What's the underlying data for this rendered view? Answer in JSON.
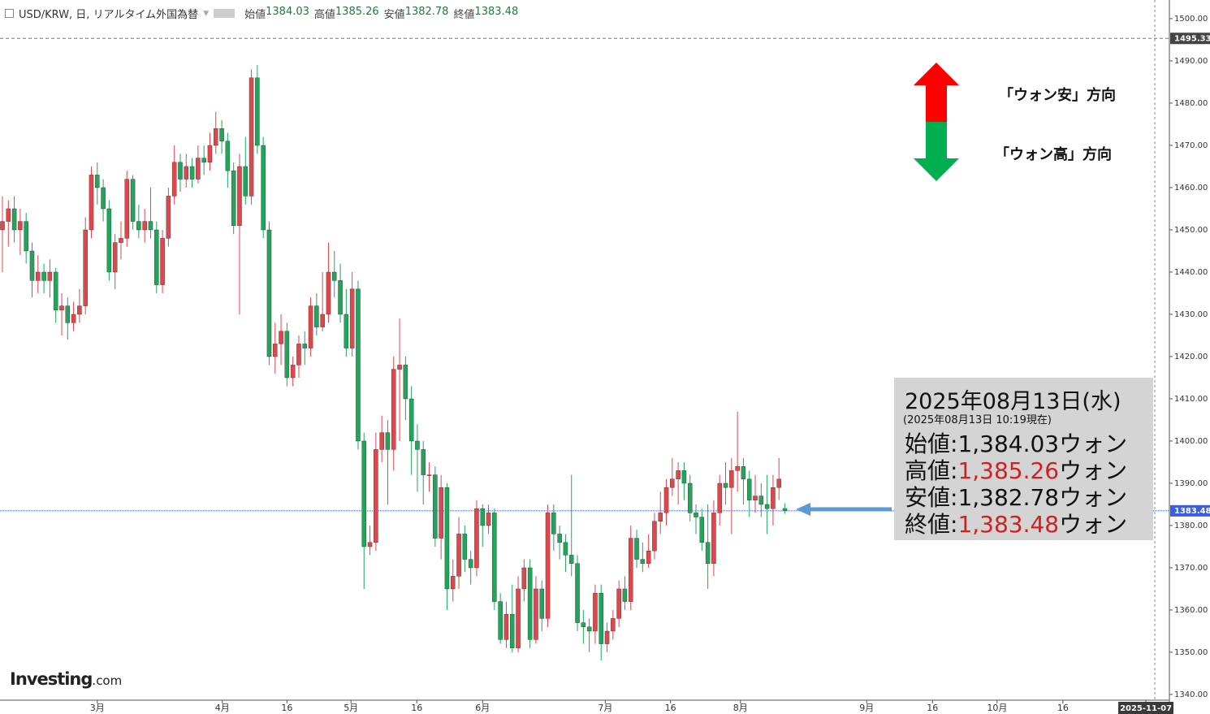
{
  "chart_data": {
    "type": "candlestick",
    "header": {
      "symbol": "USD/KRW, 日, リアルタイム外国為替",
      "fields": [
        {
          "label": "始値",
          "value": 1384.03
        },
        {
          "label": "高値",
          "value": 1385.26
        },
        {
          "label": "安値",
          "value": 1382.78
        },
        {
          "label": "終値",
          "value": 1383.48
        }
      ]
    },
    "up_color": "#e0474c",
    "down_color": "#22a55b",
    "xlim": [
      -0.41,
      194.4
    ],
    "ylim": [
      1338.65,
      1504.42
    ],
    "yticks": [
      {
        "value": 1340,
        "label": "1340.00"
      },
      {
        "value": 1350,
        "label": "1350.00"
      },
      {
        "value": 1360,
        "label": "1360.00"
      },
      {
        "value": 1370,
        "label": "1370.00"
      },
      {
        "value": 1380,
        "label": "1380.00"
      },
      {
        "value": 1390,
        "label": "1390.00"
      },
      {
        "value": 1400,
        "label": "1400.00"
      },
      {
        "value": 1410,
        "label": "1410.00"
      },
      {
        "value": 1420,
        "label": "1420.00"
      },
      {
        "value": 1430,
        "label": "1430.00"
      },
      {
        "value": 1440,
        "label": "1440.00"
      },
      {
        "value": 1450,
        "label": "1450.00"
      },
      {
        "value": 1460,
        "label": "1460.00"
      },
      {
        "value": 1470,
        "label": "1470.00"
      },
      {
        "value": 1480,
        "label": "1480.00"
      },
      {
        "value": 1490,
        "label": "1490.00"
      },
      {
        "value": 1500,
        "label": "1500.00"
      }
    ],
    "xticks": [
      {
        "value": 16,
        "label": "3月"
      },
      {
        "value": 37.1,
        "label": "4月"
      },
      {
        "value": 48,
        "label": "16"
      },
      {
        "value": 58.8,
        "label": "5月"
      },
      {
        "value": 69.9,
        "label": "16"
      },
      {
        "value": 81,
        "label": "6月"
      },
      {
        "value": 101.7,
        "label": "7月"
      },
      {
        "value": 112.7,
        "label": "16"
      },
      {
        "value": 124.5,
        "label": "8月"
      },
      {
        "value": 145.8,
        "label": "9月"
      },
      {
        "value": 156.9,
        "label": "16"
      },
      {
        "value": 167.8,
        "label": "10月"
      },
      {
        "value": 178.9,
        "label": "16"
      },
      {
        "value": 192.9,
        "label": "2025-11-07"
      }
    ],
    "high_line": 1495.33,
    "last_price": 1383.48,
    "ohlc": [
      [
        1450,
        1458,
        1440,
        1452
      ],
      [
        1452,
        1457,
        1446,
        1455
      ],
      [
        1455,
        1458,
        1447,
        1450
      ],
      [
        1450,
        1455,
        1444,
        1452
      ],
      [
        1452,
        1454,
        1442,
        1445
      ],
      [
        1445,
        1447,
        1434,
        1438
      ],
      [
        1438,
        1444,
        1435,
        1440
      ],
      [
        1440,
        1442,
        1435,
        1438
      ],
      [
        1438,
        1443,
        1434,
        1440
      ],
      [
        1440,
        1441,
        1428,
        1431
      ],
      [
        1431,
        1435,
        1425,
        1432
      ],
      [
        1432,
        1434,
        1424,
        1428
      ],
      [
        1428,
        1433,
        1426,
        1430
      ],
      [
        1430,
        1436,
        1428,
        1432
      ],
      [
        1432,
        1453,
        1430,
        1450
      ],
      [
        1450,
        1465,
        1448,
        1463
      ],
      [
        1463,
        1466,
        1456,
        1460
      ],
      [
        1460,
        1462,
        1452,
        1455
      ],
      [
        1455,
        1457,
        1438,
        1440
      ],
      [
        1440,
        1449,
        1436,
        1447
      ],
      [
        1447,
        1452,
        1443,
        1448
      ],
      [
        1448,
        1464,
        1446,
        1462
      ],
      [
        1462,
        1463,
        1450,
        1452
      ],
      [
        1452,
        1456,
        1448,
        1450
      ],
      [
        1450,
        1455,
        1447,
        1452
      ],
      [
        1452,
        1460,
        1448,
        1450
      ],
      [
        1450,
        1452,
        1435,
        1437
      ],
      [
        1437,
        1450,
        1435,
        1448
      ],
      [
        1448,
        1460,
        1446,
        1458
      ],
      [
        1458,
        1470,
        1456,
        1466
      ],
      [
        1466,
        1468,
        1459,
        1462
      ],
      [
        1462,
        1468,
        1460,
        1465
      ],
      [
        1465,
        1467,
        1460,
        1462
      ],
      [
        1462,
        1470,
        1461,
        1467
      ],
      [
        1467,
        1470,
        1463,
        1466
      ],
      [
        1466,
        1473,
        1464,
        1470
      ],
      [
        1470,
        1478,
        1468,
        1474
      ],
      [
        1474,
        1476,
        1468,
        1471
      ],
      [
        1471,
        1473,
        1460,
        1464
      ],
      [
        1464,
        1466,
        1449,
        1451
      ],
      [
        1451,
        1468,
        1430,
        1465
      ],
      [
        1465,
        1472,
        1456,
        1458
      ],
      [
        1458,
        1488,
        1456,
        1486
      ],
      [
        1486,
        1489,
        1468,
        1470
      ],
      [
        1470,
        1472,
        1448,
        1450
      ],
      [
        1450,
        1452,
        1418,
        1420
      ],
      [
        1420,
        1428,
        1416,
        1423
      ],
      [
        1423,
        1430,
        1418,
        1426
      ],
      [
        1426,
        1428,
        1413,
        1415
      ],
      [
        1415,
        1420,
        1413,
        1418
      ],
      [
        1418,
        1425,
        1415,
        1423
      ],
      [
        1423,
        1426,
        1418,
        1422
      ],
      [
        1422,
        1434,
        1420,
        1432
      ],
      [
        1432,
        1435,
        1425,
        1427
      ],
      [
        1427,
        1440,
        1426,
        1430
      ],
      [
        1430,
        1447,
        1428,
        1440
      ],
      [
        1440,
        1445,
        1434,
        1438
      ],
      [
        1438,
        1442,
        1428,
        1430
      ],
      [
        1430,
        1436,
        1420,
        1422
      ],
      [
        1422,
        1440,
        1420,
        1436
      ],
      [
        1436,
        1438,
        1398,
        1400
      ],
      [
        1400,
        1402,
        1365,
        1375
      ],
      [
        1375,
        1380,
        1373,
        1376
      ],
      [
        1376,
        1402,
        1374,
        1398
      ],
      [
        1398,
        1406,
        1395,
        1402
      ],
      [
        1402,
        1405,
        1385,
        1398
      ],
      [
        1398,
        1420,
        1393,
        1417
      ],
      [
        1417,
        1429,
        1400,
        1418
      ],
      [
        1418,
        1420,
        1405,
        1410
      ],
      [
        1410,
        1413,
        1392,
        1400
      ],
      [
        1400,
        1404,
        1388,
        1398
      ],
      [
        1398,
        1400,
        1385,
        1392
      ],
      [
        1392,
        1395,
        1388,
        1392
      ],
      [
        1392,
        1394,
        1375,
        1377
      ],
      [
        1377,
        1392,
        1372,
        1389
      ],
      [
        1389,
        1390,
        1360,
        1365
      ],
      [
        1365,
        1372,
        1362,
        1368
      ],
      [
        1368,
        1382,
        1365,
        1378
      ],
      [
        1378,
        1380,
        1369,
        1372
      ],
      [
        1372,
        1374,
        1366,
        1370
      ],
      [
        1370,
        1386,
        1368,
        1384
      ],
      [
        1384,
        1385,
        1375,
        1380
      ],
      [
        1380,
        1385,
        1378,
        1383
      ],
      [
        1383,
        1384,
        1360,
        1362
      ],
      [
        1362,
        1364,
        1352,
        1353
      ],
      [
        1353,
        1362,
        1351,
        1359
      ],
      [
        1359,
        1366,
        1350,
        1351
      ],
      [
        1351,
        1368,
        1350,
        1365
      ],
      [
        1365,
        1372,
        1362,
        1370
      ],
      [
        1370,
        1372,
        1351,
        1353
      ],
      [
        1353,
        1368,
        1352,
        1365
      ],
      [
        1365,
        1367,
        1355,
        1358
      ],
      [
        1358,
        1385,
        1356,
        1383
      ],
      [
        1383,
        1385,
        1374,
        1378
      ],
      [
        1378,
        1380,
        1372,
        1376
      ],
      [
        1376,
        1378,
        1369,
        1373
      ],
      [
        1373,
        1392,
        1368,
        1371
      ],
      [
        1371,
        1373,
        1355,
        1357
      ],
      [
        1357,
        1360,
        1352,
        1356
      ],
      [
        1356,
        1358,
        1350,
        1355
      ],
      [
        1355,
        1366,
        1352,
        1364
      ],
      [
        1364,
        1366,
        1348,
        1352
      ],
      [
        1352,
        1357,
        1350,
        1355
      ],
      [
        1355,
        1360,
        1353,
        1358
      ],
      [
        1358,
        1367,
        1356,
        1365
      ],
      [
        1365,
        1368,
        1360,
        1362
      ],
      [
        1362,
        1380,
        1360,
        1377
      ],
      [
        1377,
        1379,
        1370,
        1372
      ],
      [
        1372,
        1376,
        1369,
        1371
      ],
      [
        1371,
        1378,
        1370,
        1374
      ],
      [
        1374,
        1383,
        1372,
        1381
      ],
      [
        1381,
        1388,
        1378,
        1383
      ],
      [
        1383,
        1391,
        1380,
        1389
      ],
      [
        1389,
        1396,
        1387,
        1391
      ],
      [
        1391,
        1395,
        1385,
        1393
      ],
      [
        1393,
        1395,
        1386,
        1390
      ],
      [
        1390,
        1392,
        1381,
        1383
      ],
      [
        1383,
        1385,
        1378,
        1382
      ],
      [
        1382,
        1384,
        1374,
        1376
      ],
      [
        1376,
        1385,
        1365,
        1371
      ],
      [
        1371,
        1386,
        1368,
        1383
      ],
      [
        1383,
        1392,
        1380,
        1390
      ],
      [
        1390,
        1395,
        1385,
        1389
      ],
      [
        1389,
        1396,
        1378,
        1393
      ],
      [
        1393,
        1407,
        1388,
        1394
      ],
      [
        1394,
        1396,
        1385,
        1391
      ],
      [
        1391,
        1393,
        1382,
        1386
      ],
      [
        1386,
        1392,
        1383,
        1387
      ],
      [
        1387,
        1390,
        1382,
        1385
      ],
      [
        1385,
        1392,
        1378,
        1384
      ],
      [
        1384,
        1392,
        1380,
        1389
      ],
      [
        1389,
        1396,
        1386,
        1391
      ],
      [
        1384.03,
        1385.26,
        1382.78,
        1383.48
      ]
    ],
    "direction_labels": {
      "up": "「ウォン安」方向",
      "down": "「ウォン高」方向"
    },
    "info_box": {
      "date": "2025年08月13日(水)",
      "asof": "(2025年08月13日 10:19現在)",
      "rows": [
        {
          "label": "始値:",
          "value": "1,384.03",
          "unit": "ウォン",
          "color": "#111111"
        },
        {
          "label": "高値:",
          "value": "1,385.26",
          "unit": "ウォン",
          "color": "#d41f1f"
        },
        {
          "label": "安値:",
          "value": "1,382.78",
          "unit": "ウォン",
          "color": "#111111"
        },
        {
          "label": "終値:",
          "value": "1,383.48",
          "unit": "ウォン",
          "color": "#d41f1f"
        }
      ]
    },
    "logo": {
      "brand": "Investing",
      "suffix": ".com"
    }
  }
}
